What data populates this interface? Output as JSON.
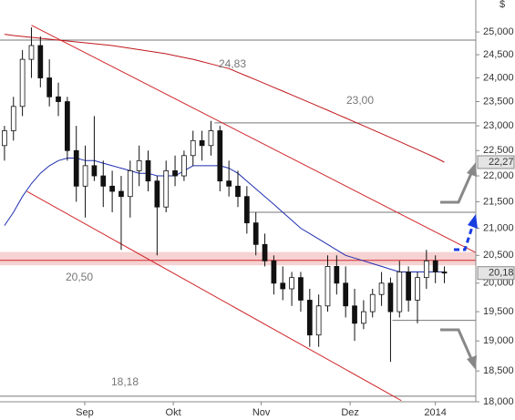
{
  "chart_data": {
    "type": "candlestick",
    "y_unit": "$",
    "log": true,
    "ylim": [
      18.0,
      25.72
    ],
    "yticks": [
      {
        "value": 18.0,
        "label": "18,000"
      },
      {
        "value": 18.5,
        "label": "18,500"
      },
      {
        "value": 19.0,
        "label": "19,000"
      },
      {
        "value": 19.5,
        "label": "19,500"
      },
      {
        "value": 20.0,
        "label": "20,000"
      },
      {
        "value": 20.5,
        "label": "20,500"
      },
      {
        "value": 21.0,
        "label": "21,000"
      },
      {
        "value": 21.5,
        "label": "21,500"
      },
      {
        "value": 22.0,
        "label": "22,000"
      },
      {
        "value": 22.5,
        "label": "22,500"
      },
      {
        "value": 23.0,
        "label": "23,000"
      },
      {
        "value": 23.5,
        "label": "23,500"
      },
      {
        "value": 24.0,
        "label": "24,000"
      },
      {
        "value": 24.5,
        "label": "24,500"
      },
      {
        "value": 25.0,
        "label": "25,000"
      }
    ],
    "xlim": [
      0,
      53
    ],
    "xticks": [
      {
        "value": 9.44,
        "label": "Sep"
      },
      {
        "value": 19.3,
        "label": "Okt"
      },
      {
        "value": 29.1,
        "label": "Nov"
      },
      {
        "value": 39.0,
        "label": "Dez"
      },
      {
        "value": 48.5,
        "label": "2014"
      }
    ],
    "categories": [
      null,
      null,
      null,
      null,
      null,
      null,
      null,
      null,
      null,
      null,
      null,
      null,
      null,
      null,
      null,
      null,
      null,
      null,
      null,
      null,
      null,
      null,
      null,
      null,
      null,
      null,
      null,
      null,
      null,
      null,
      null,
      null,
      null,
      null,
      null,
      null,
      null,
      null,
      null,
      null,
      null,
      null,
      null,
      null,
      null,
      null,
      null,
      null,
      null,
      null
    ],
    "open": [
      22.6,
      22.9,
      23.4,
      24.4,
      24.7,
      24.0,
      23.6,
      23.5,
      22.5,
      21.8,
      22.2,
      22.0,
      21.8,
      21.7,
      21.6,
      22.1,
      22.3,
      21.9,
      21.4,
      22.1,
      22.0,
      22.4,
      22.7,
      22.6,
      22.9,
      21.9,
      21.8,
      21.6,
      21.1,
      20.7,
      20.4,
      20.0,
      19.9,
      20.1,
      19.7,
      19.1,
      19.6,
      20.3,
      20.0,
      19.6,
      19.3,
      19.5,
      19.8,
      20.0,
      19.5,
      20.2,
      19.7,
      20.1,
      20.4,
      20.2
    ],
    "high": [
      23.0,
      23.6,
      24.6,
      25.1,
      24.9,
      24.4,
      23.9,
      23.6,
      23.0,
      22.6,
      23.2,
      22.3,
      22.1,
      22.0,
      22.3,
      22.6,
      22.5,
      22.0,
      22.3,
      22.4,
      22.5,
      22.9,
      22.9,
      23.1,
      23.0,
      22.3,
      22.1,
      21.8,
      21.3,
      20.9,
      20.5,
      20.3,
      20.2,
      20.2,
      19.9,
      19.8,
      20.5,
      20.5,
      20.3,
      19.9,
      19.7,
      19.9,
      20.2,
      20.1,
      20.4,
      20.3,
      20.2,
      20.6,
      20.5,
      20.3
    ],
    "low": [
      22.3,
      22.7,
      23.2,
      24.0,
      23.8,
      23.4,
      23.2,
      22.3,
      21.5,
      21.2,
      21.9,
      21.4,
      21.3,
      20.6,
      21.2,
      21.8,
      21.7,
      20.5,
      21.3,
      21.8,
      21.9,
      22.2,
      22.3,
      22.4,
      21.7,
      21.6,
      21.4,
      20.9,
      20.5,
      20.3,
      19.8,
      19.7,
      19.6,
      19.5,
      18.9,
      18.9,
      19.5,
      19.8,
      19.4,
      19.0,
      19.2,
      19.4,
      19.6,
      18.65,
      19.4,
      19.5,
      19.3,
      19.9,
      20.0,
      20.0
    ],
    "close": [
      22.9,
      23.4,
      24.4,
      24.7,
      24.0,
      23.6,
      23.5,
      22.5,
      21.8,
      22.2,
      22.0,
      21.8,
      21.7,
      21.6,
      22.1,
      22.3,
      21.9,
      21.4,
      22.1,
      22.0,
      22.4,
      22.7,
      22.6,
      22.9,
      21.9,
      21.8,
      21.6,
      21.1,
      20.7,
      20.4,
      20.0,
      19.9,
      20.1,
      19.7,
      19.1,
      19.6,
      20.3,
      20.0,
      19.6,
      19.3,
      19.5,
      19.8,
      20.0,
      19.5,
      20.2,
      19.7,
      20.1,
      20.4,
      20.2,
      20.18
    ],
    "series": [
      {
        "color": "#1f2fb0",
        "values": [
          21.05,
          21.3,
          21.6,
          21.85,
          22.05,
          22.2,
          22.3,
          22.35,
          22.35,
          22.3,
          22.3,
          22.25,
          22.2,
          22.15,
          22.1,
          22.05,
          22.05,
          22.0,
          22.0,
          22.0,
          22.1,
          22.2,
          22.2,
          22.2,
          22.2,
          22.15,
          22.05,
          21.9,
          21.75,
          21.6,
          21.45,
          21.3,
          21.15,
          21.0,
          20.9,
          20.8,
          20.7,
          20.6,
          20.5,
          20.45,
          20.4,
          20.35,
          20.3,
          20.25,
          20.2,
          20.2,
          20.2,
          20.2,
          20.2,
          20.2
        ]
      },
      {
        "color": "#c0161b",
        "values": [
          24.95,
          24.92,
          24.9,
          24.88,
          24.86,
          24.84,
          24.82,
          24.8,
          24.78,
          24.76,
          24.74,
          24.72,
          24.7,
          24.67,
          24.64,
          24.61,
          24.58,
          24.55,
          24.52,
          24.48,
          24.44,
          24.4,
          24.35,
          24.3,
          24.25,
          24.2,
          24.12,
          24.04,
          23.96,
          23.88,
          23.8,
          23.72,
          23.64,
          23.56,
          23.48,
          23.4,
          23.32,
          23.24,
          23.16,
          23.08,
          23.0,
          22.92,
          22.84,
          22.76,
          22.68,
          22.6,
          22.52,
          22.44,
          22.36,
          22.27
        ]
      }
    ],
    "trendlines": [
      {
        "color": "#d0282c",
        "x": [
          3.5,
          53
        ],
        "y": [
          25.15,
          20.55
        ]
      },
      {
        "color": "#d0282c",
        "x": [
          3.0,
          44.7
        ],
        "y": [
          21.7,
          18.02
        ]
      }
    ],
    "levels": [
      {
        "value": 24.82,
        "x": [
          0,
          53
        ],
        "color": "#777"
      },
      {
        "value": 23.06,
        "x": [
          23.9,
          53
        ],
        "color": "#777"
      },
      {
        "value": 21.3,
        "x": [
          27.4,
          53
        ],
        "color": "#777"
      },
      {
        "value": 20.41,
        "x": [
          0,
          53
        ],
        "color": "#d0282c"
      },
      {
        "value": 19.35,
        "x": [
          43.7,
          53
        ],
        "color": "#777"
      },
      {
        "value": 18.09,
        "x": [
          0,
          53
        ],
        "color": "#777"
      }
    ],
    "band": {
      "range": [
        20.32,
        20.56
      ],
      "color": "#f6d2d2"
    },
    "annotations": [
      "24,83",
      "23,00",
      "20,50",
      "18,18"
    ],
    "price_tags": [
      {
        "value": 22.27,
        "label": "22,27"
      },
      {
        "value": 20.18,
        "label": "20,18"
      }
    ]
  }
}
